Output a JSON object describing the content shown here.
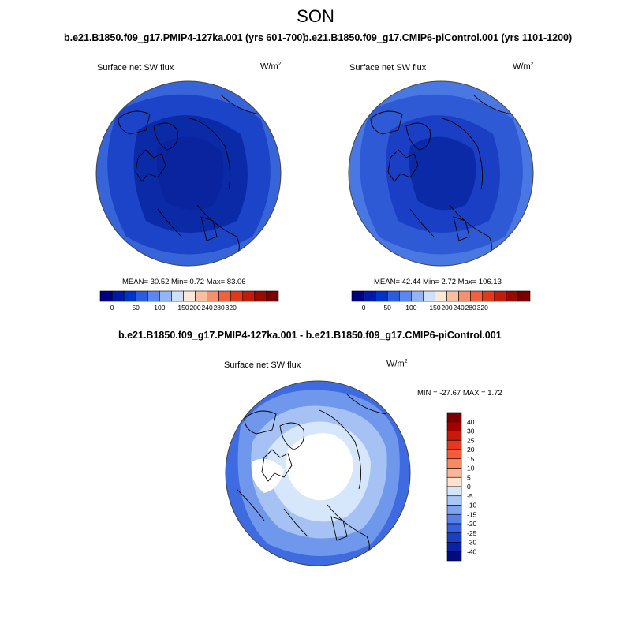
{
  "season": "SON",
  "panels": [
    {
      "title": "b.e21.B1850.f09_g17.PMIP4-127ka.001 (yrs 601-700)",
      "variable": "Surface net SW flux",
      "units": "W/m",
      "units_sup": "2",
      "stats": "MEAN=  30.52  Min=   0.72  Max=  83.06",
      "colorbar_labels": [
        "0",
        "50",
        "100",
        "150",
        "200",
        "240",
        "280",
        "320"
      ]
    },
    {
      "title": "b.e21.B1850.f09_g17.CMIP6-piControl.001 (yrs 1101-1200)",
      "variable": "Surface net SW flux",
      "units": "W/m",
      "units_sup": "2",
      "stats": "MEAN=  42.44  Min=   2.72  Max= 106.13",
      "colorbar_labels": [
        "0",
        "50",
        "100",
        "150",
        "200",
        "240",
        "280",
        "320"
      ]
    }
  ],
  "diff_panel": {
    "title": "b.e21.B1850.f09_g17.PMIP4-127ka.001 - b.e21.B1850.f09_g17.CMIP6-piControl.001",
    "variable": "Surface net SW flux",
    "units": "W/m",
    "units_sup": "2",
    "stats": "MIN = -27.67 MAX =   1.72",
    "colorbar_labels": [
      "40",
      "30",
      "25",
      "20",
      "15",
      "10",
      "5",
      "0",
      "-5",
      "-10",
      "-15",
      "-20",
      "-25",
      "-30",
      "-40"
    ]
  },
  "colors": {
    "abs_scale": [
      "#00007f",
      "#0019a8",
      "#0033cc",
      "#2c5ce0",
      "#5b87ee",
      "#95b4f5",
      "#cfe0fb",
      "#fde8d8",
      "#f9bfa2",
      "#f59071",
      "#f0623f",
      "#e03a1c",
      "#bf1e0c",
      "#990a03",
      "#7a0000"
    ],
    "diff_scale": [
      "#7a0000",
      "#a00000",
      "#c81a0a",
      "#e23a1e",
      "#f45d3c",
      "#f88a63",
      "#fbb597",
      "#fde2cf",
      "#d4e6fb",
      "#a9c6f7",
      "#7fa5f1",
      "#567fe8",
      "#3560dc",
      "#1a3fc5",
      "#0a23a6",
      "#000b80"
    ],
    "map_dark": "#0a2aa8",
    "map_mid": "#1b44c8",
    "map_light": "#3764d8",
    "diff_white": "#ffffff",
    "diff_pale": "#d6e6fb",
    "diff_light": "#a6c2f4",
    "diff_mid": "#6f97ec",
    "diff_outer": "#3e6ce0"
  }
}
